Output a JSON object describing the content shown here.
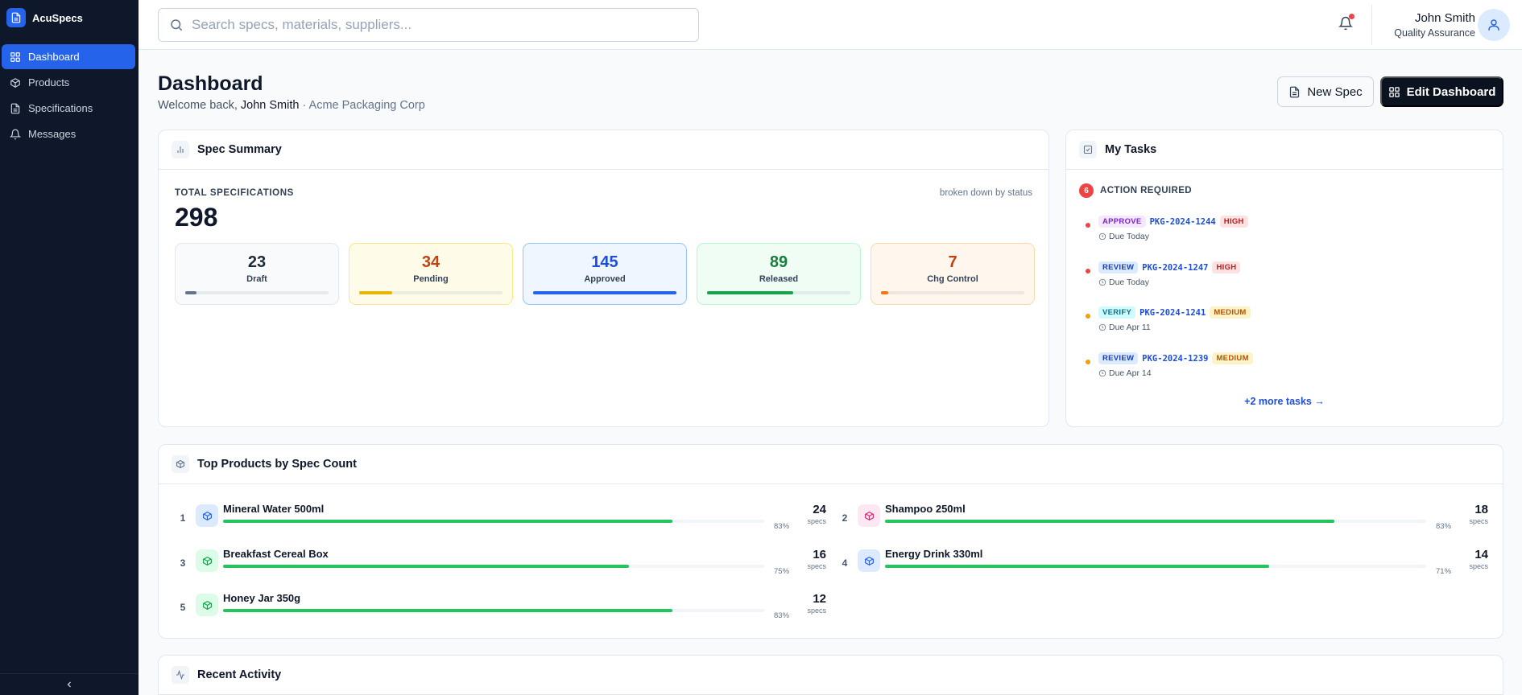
{
  "app": {
    "name": "AcuSpecs"
  },
  "sidebar": {
    "items": [
      {
        "label": "Dashboard",
        "icon": "grid-icon",
        "active": true
      },
      {
        "label": "Products",
        "icon": "box-icon",
        "active": false
      },
      {
        "label": "Specifications",
        "icon": "document-icon",
        "active": false
      },
      {
        "label": "Messages",
        "icon": "bell-icon",
        "active": false
      }
    ],
    "collapse_icon": "chevron-left-icon"
  },
  "topbar": {
    "search_placeholder": "Search specs, materials, suppliers...",
    "notifications_unread": true,
    "user": {
      "name": "John Smith",
      "role": "Quality Assurance"
    }
  },
  "page": {
    "title": "Dashboard",
    "welcome_prefix": "Welcome back,",
    "user_name": "John Smith",
    "separator": "·",
    "company": "Acme Packaging Corp",
    "new_spec_label": "New Spec",
    "edit_dashboard_label": "Edit Dashboard"
  },
  "spec_summary": {
    "title": "Spec Summary",
    "total_label": "TOTAL SPECIFICATIONS",
    "total_value": "298",
    "breakdown_note": "broken down by status",
    "statuses": [
      {
        "value": "23",
        "label": "Draft",
        "fraction": 0.077,
        "color": "#64748b"
      },
      {
        "value": "34",
        "label": "Pending",
        "fraction": 0.23,
        "color": "#eab308"
      },
      {
        "value": "145",
        "label": "Approved",
        "fraction": 1.0,
        "color": "#2563eb"
      },
      {
        "value": "89",
        "label": "Released",
        "fraction": 0.6,
        "color": "#16a34a"
      },
      {
        "value": "7",
        "label": "Chg Control",
        "fraction": 0.048,
        "color": "#f97316"
      }
    ]
  },
  "tasks": {
    "title": "My Tasks",
    "action_count": "6",
    "action_label": "ACTION REQUIRED",
    "items": [
      {
        "type": "APPROVE",
        "code": "PKG-2024-1244",
        "priority": "HIGH",
        "due": "Due Today"
      },
      {
        "type": "REVIEW",
        "code": "PKG-2024-1247",
        "priority": "HIGH",
        "due": "Due Today"
      },
      {
        "type": "VERIFY",
        "code": "PKG-2024-1241",
        "priority": "MEDIUM",
        "due": "Due Apr 11"
      },
      {
        "type": "REVIEW",
        "code": "PKG-2024-1239",
        "priority": "MEDIUM",
        "due": "Due Apr 14"
      }
    ],
    "more_label": "+2 more tasks →"
  },
  "top_products": {
    "title": "Top Products by Spec Count",
    "unit": "specs",
    "items": [
      {
        "rank": "1",
        "name": "Mineral Water 500ml",
        "count": "24",
        "pct": "83%",
        "fraction": 0.83,
        "icon_color": "#2563eb",
        "icon_bg": "#dbeafe"
      },
      {
        "rank": "2",
        "name": "Shampoo 250ml",
        "count": "18",
        "pct": "83%",
        "fraction": 0.83,
        "icon_color": "#db2777",
        "icon_bg": "#fce7f3"
      },
      {
        "rank": "3",
        "name": "Breakfast Cereal Box",
        "count": "16",
        "pct": "75%",
        "fraction": 0.75,
        "icon_color": "#16a34a",
        "icon_bg": "#dcfce7"
      },
      {
        "rank": "4",
        "name": "Energy Drink 330ml",
        "count": "14",
        "pct": "71%",
        "fraction": 0.71,
        "icon_color": "#2563eb",
        "icon_bg": "#dbeafe"
      },
      {
        "rank": "5",
        "name": "Honey Jar 350g",
        "count": "12",
        "pct": "83%",
        "fraction": 0.83,
        "icon_color": "#16a34a",
        "icon_bg": "#dcfce7"
      }
    ]
  },
  "recent_activity": {
    "title": "Recent Activity"
  }
}
